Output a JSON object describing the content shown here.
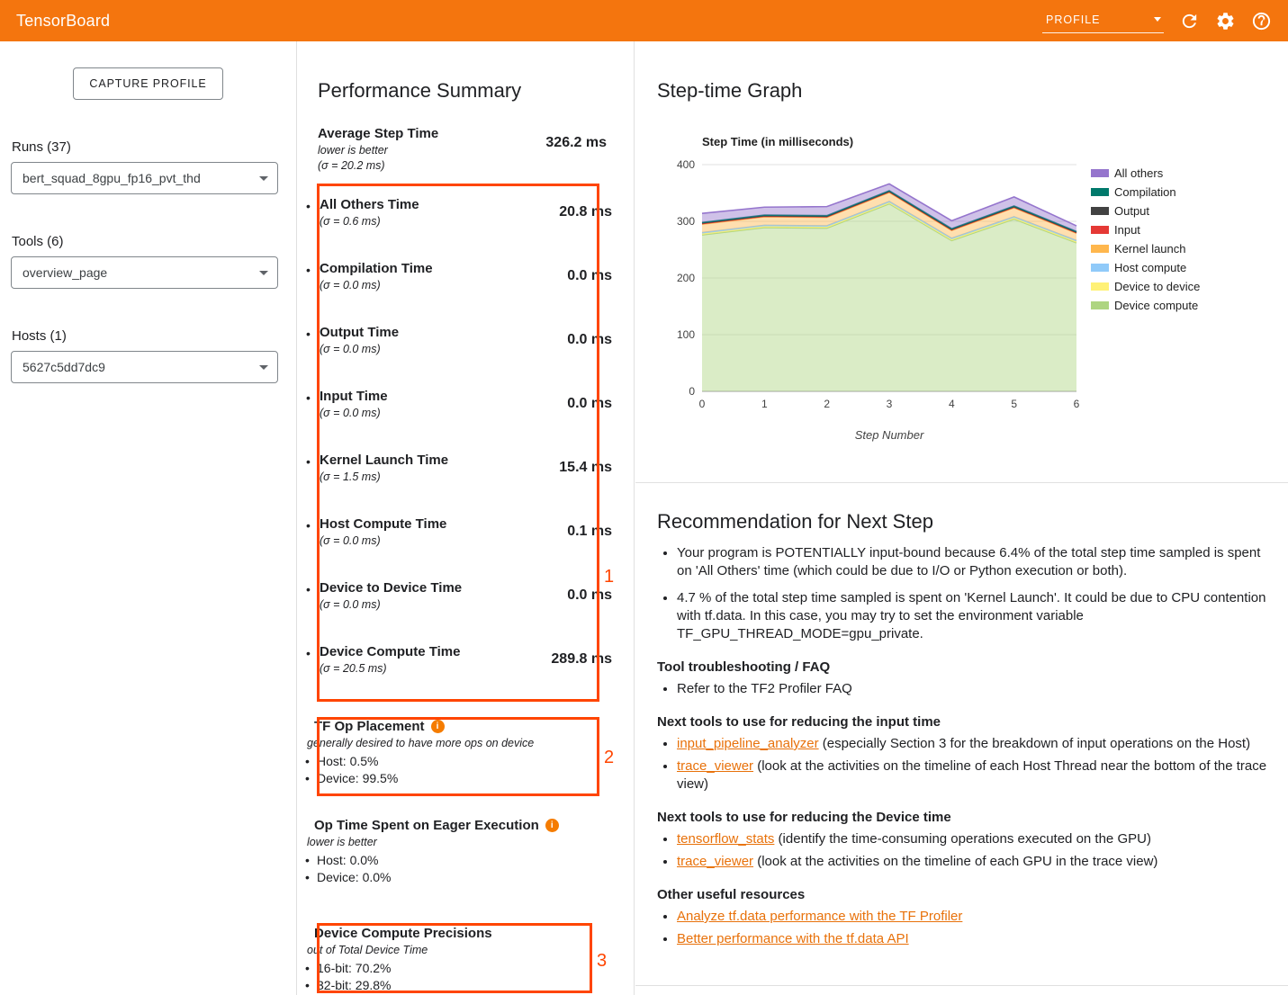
{
  "topbar": {
    "title": "TensorBoard",
    "dashboard_selector": "PROFILE"
  },
  "icons": {
    "info": "i",
    "bullet": "•"
  },
  "colors": {
    "header_background": "#f4750e",
    "annotation": "#ff4500",
    "link": "#e8710a",
    "info_icon": "#f57c00"
  },
  "sidebar": {
    "capture_profile_button": "CAPTURE PROFILE",
    "runs": {
      "label": "Runs (37)",
      "selected": "bert_squad_8gpu_fp16_pvt_thd"
    },
    "tools": {
      "label": "Tools (6)",
      "selected": "overview_page"
    },
    "hosts": {
      "label": "Hosts (1)",
      "selected": "5627c5dd7dc9"
    }
  },
  "performance_summary": {
    "title": "Performance Summary",
    "average_step_time": {
      "label": "Average Step Time",
      "note": "lower is better",
      "sigma": "(σ = 20.2 ms)",
      "value": "326.2 ms"
    },
    "metrics": [
      {
        "label": "All Others Time",
        "sigma": "(σ = 0.6 ms)",
        "value": "20.8 ms"
      },
      {
        "label": "Compilation Time",
        "sigma": "(σ = 0.0 ms)",
        "value": "0.0 ms"
      },
      {
        "label": "Output Time",
        "sigma": "(σ = 0.0 ms)",
        "value": "0.0 ms"
      },
      {
        "label": "Input Time",
        "sigma": "(σ = 0.0 ms)",
        "value": "0.0 ms"
      },
      {
        "label": "Kernel Launch Time",
        "sigma": "(σ = 1.5 ms)",
        "value": "15.4 ms"
      },
      {
        "label": "Host Compute Time",
        "sigma": "(σ = 0.0 ms)",
        "value": "0.1 ms"
      },
      {
        "label": "Device to Device Time",
        "sigma": "(σ = 0.0 ms)",
        "value": "0.0 ms"
      },
      {
        "label": "Device Compute Time",
        "sigma": "(σ = 20.5 ms)",
        "value": "289.8 ms"
      }
    ],
    "tf_op_placement": {
      "title": "TF Op Placement",
      "note": "generally desired to have more ops on device",
      "items": [
        "Host: 0.5%",
        "Device: 99.5%"
      ]
    },
    "eager_execution": {
      "title": "Op Time Spent on Eager Execution",
      "note": "lower is better",
      "items": [
        "Host: 0.0%",
        "Device: 0.0%"
      ]
    },
    "device_compute_precisions": {
      "title": "Device Compute Precisions",
      "note": "out of Total Device Time",
      "items": [
        "16-bit: 70.2%",
        "32-bit: 29.8%"
      ]
    },
    "annotations": [
      "1",
      "2",
      "3"
    ]
  },
  "step_time_graph": {
    "title": "Step-time Graph"
  },
  "chart_data": {
    "type": "area",
    "stacked": true,
    "title": "Step Time (in milliseconds)",
    "xlabel": "Step Number",
    "x": [
      0,
      1,
      2,
      3,
      4,
      5,
      6
    ],
    "ylim": [
      0,
      400
    ],
    "yticks": [
      0,
      100,
      200,
      300,
      400
    ],
    "legend_position": "right",
    "series": [
      {
        "name": "Device compute",
        "color": "#aed581",
        "values": [
          276,
          289,
          288,
          331,
          266,
          304,
          262
        ]
      },
      {
        "name": "Device to device",
        "color": "#fff176",
        "values": [
          2,
          2,
          2,
          2,
          2,
          2,
          2
        ]
      },
      {
        "name": "Host compute",
        "color": "#90caf9",
        "values": [
          2,
          2,
          2,
          2,
          2,
          2,
          2
        ]
      },
      {
        "name": "Kernel launch",
        "color": "#ffb74d",
        "values": [
          15,
          15,
          15,
          16,
          14,
          16,
          13
        ]
      },
      {
        "name": "Input",
        "color": "#e53935",
        "values": [
          1,
          1,
          1,
          1,
          1,
          1,
          1
        ]
      },
      {
        "name": "Output",
        "color": "#424242",
        "values": [
          1,
          1,
          1,
          1,
          1,
          1,
          1
        ]
      },
      {
        "name": "Compilation",
        "color": "#00796b",
        "values": [
          1,
          1,
          1,
          1,
          1,
          1,
          1
        ]
      },
      {
        "name": "All others",
        "color": "#9575cd",
        "values": [
          16,
          14,
          16,
          12,
          14,
          16,
          10
        ]
      }
    ]
  },
  "recommendation": {
    "title": "Recommendation for Next Step",
    "intro_bullets": [
      "Your program is POTENTIALLY input-bound because 6.4% of the total step time sampled is spent on 'All Others' time (which could be due to I/O or Python execution or both).",
      "4.7 % of the total step time sampled is spent on 'Kernel Launch'. It could be due to CPU contention with tf.data. In this case, you may try to set the environment variable TF_GPU_THREAD_MODE=gpu_private."
    ],
    "sections": [
      {
        "heading": "Tool troubleshooting / FAQ",
        "bullets": [
          [
            {
              "text": "Refer to the TF2 Profiler FAQ"
            }
          ]
        ]
      },
      {
        "heading": "Next tools to use for reducing the input time",
        "bullets": [
          [
            {
              "link": "input_pipeline_analyzer"
            },
            {
              "text": " (especially Section 3 for the breakdown of input operations on the Host)"
            }
          ],
          [
            {
              "link": "trace_viewer"
            },
            {
              "text": " (look at the activities on the timeline of each Host Thread near the bottom of the trace view)"
            }
          ]
        ]
      },
      {
        "heading": "Next tools to use for reducing the Device time",
        "bullets": [
          [
            {
              "link": "tensorflow_stats"
            },
            {
              "text": " (identify the time-consuming operations executed on the GPU)"
            }
          ],
          [
            {
              "link": "trace_viewer"
            },
            {
              "text": " (look at the activities on the timeline of each GPU in the trace view)"
            }
          ]
        ]
      },
      {
        "heading": "Other useful resources",
        "bullets": [
          [
            {
              "link": "Analyze tf.data performance with the TF Profiler"
            }
          ],
          [
            {
              "link": "Better performance with the tf.data API"
            }
          ]
        ]
      }
    ]
  }
}
